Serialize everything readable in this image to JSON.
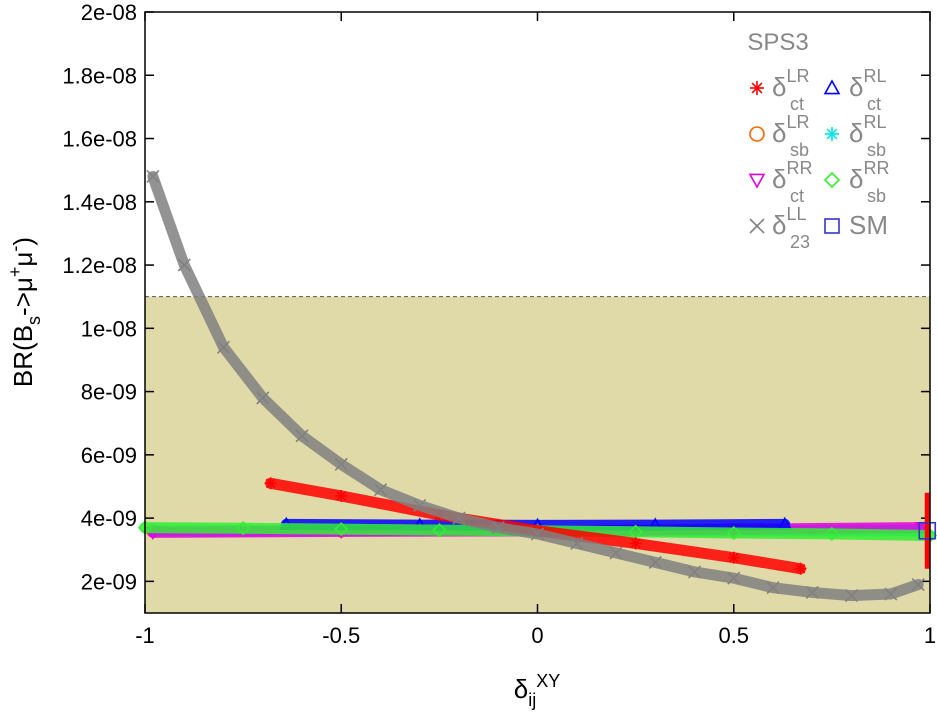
{
  "chart_data": {
    "type": "scatter",
    "xlabel": [
      {
        "text": "δ"
      },
      {
        "text": "ij",
        "sub": true
      },
      {
        "text": "XY",
        "sup": true
      }
    ],
    "ylabel": [
      {
        "text": "BR(B"
      },
      {
        "text": "s",
        "sub": true
      },
      {
        "text": "->μ"
      },
      {
        "text": "+",
        "sup": true
      },
      {
        "text": "μ"
      },
      {
        "text": "-",
        "sup": true
      },
      {
        "text": ")"
      }
    ],
    "xlim": [
      -1,
      1
    ],
    "xticks": [
      -1,
      -0.5,
      0,
      0.5,
      1
    ],
    "ylim": [
      1e-09,
      2e-08
    ],
    "yticks": [
      {
        "value": 2e-09,
        "label": "2e-09"
      },
      {
        "value": 4e-09,
        "label": "4e-09"
      },
      {
        "value": 6e-09,
        "label": "6e-09"
      },
      {
        "value": 8e-09,
        "label": "8e-09"
      },
      {
        "value": 1e-08,
        "label": "1e-08"
      },
      {
        "value": 1.2e-08,
        "label": "1.2e-08"
      },
      {
        "value": 1.4e-08,
        "label": "1.4e-08"
      },
      {
        "value": 1.6e-08,
        "label": "1.6e-08"
      },
      {
        "value": 1.8e-08,
        "label": "1.8e-08"
      },
      {
        "value": 2e-08,
        "label": "2e-08"
      }
    ],
    "allowed_band": {
      "upper": 1.1e-08,
      "color": "#e0daa9"
    },
    "legend_title": "SPS3",
    "legend_position": "upper right",
    "series": [
      {
        "name": "δ",
        "sub": "ct",
        "sup": "LR",
        "color": "#ff0000",
        "marker": "star",
        "x": [
          -0.68,
          -0.5,
          -0.25,
          0,
          0.25,
          0.5,
          0.67
        ],
        "values": [
          5.1e-09,
          4.7e-09,
          4.1e-09,
          3.6e-09,
          3.2e-09,
          2.75e-09,
          2.4e-09
        ]
      },
      {
        "name": "δ",
        "sub": "ct",
        "sup": "RL",
        "color": "#0000ff",
        "marker": "triangle",
        "x": [
          -0.64,
          -0.3,
          0,
          0.3,
          0.63
        ],
        "values": [
          3.8e-09,
          3.78e-09,
          3.77e-09,
          3.78e-09,
          3.8e-09
        ]
      },
      {
        "name": "δ",
        "sub": "sb",
        "sup": "LR",
        "color": "#ff6600",
        "marker": "circle",
        "x": [
          -0.98,
          -0.5,
          0,
          0.5,
          0.98
        ],
        "values": [
          3.6e-09,
          3.6e-09,
          3.6e-09,
          3.6e-09,
          3.6e-09
        ]
      },
      {
        "name": "δ",
        "sub": "sb",
        "sup": "RL",
        "color": "#00e5e5",
        "marker": "asterisk",
        "x": [
          -0.98,
          -0.5,
          0,
          0.5,
          0.98
        ],
        "values": [
          3.6e-09,
          3.6e-09,
          3.6e-09,
          3.6e-09,
          3.6e-09
        ]
      },
      {
        "name": "δ",
        "sub": "ct",
        "sup": "RR",
        "color": "#e000e0",
        "marker": "triangle-down",
        "x": [
          -0.98,
          -0.5,
          0,
          0.5,
          0.98
        ],
        "values": [
          3.55e-09,
          3.58e-09,
          3.6e-09,
          3.65e-09,
          3.7e-09
        ]
      },
      {
        "name": "δ",
        "sub": "sb",
        "sup": "RR",
        "color": "#33ee33",
        "marker": "diamond",
        "x": [
          -1,
          -0.75,
          -0.5,
          -0.25,
          0,
          0.25,
          0.5,
          0.75,
          1
        ],
        "values": [
          3.7e-09,
          3.68e-09,
          3.65e-09,
          3.62e-09,
          3.6e-09,
          3.57e-09,
          3.53e-09,
          3.5e-09,
          3.45e-09
        ]
      },
      {
        "name": "δ",
        "sub": "23",
        "sup": "LL",
        "color": "#808080",
        "marker": "cross",
        "x": [
          -0.98,
          -0.9,
          -0.8,
          -0.7,
          -0.6,
          -0.5,
          -0.4,
          -0.3,
          -0.2,
          -0.1,
          0,
          0.1,
          0.2,
          0.3,
          0.4,
          0.5,
          0.6,
          0.7,
          0.8,
          0.9,
          0.97
        ],
        "values": [
          1.48e-08,
          1.2e-08,
          9.4e-09,
          7.8e-09,
          6.6e-09,
          5.7e-09,
          4.9e-09,
          4.4e-09,
          4e-09,
          3.7e-09,
          3.5e-09,
          3.2e-09,
          2.9e-09,
          2.6e-09,
          2.3e-09,
          2.1e-09,
          1.8e-09,
          1.65e-09,
          1.55e-09,
          1.6e-09,
          1.9e-09
        ]
      },
      {
        "name": "SM",
        "color": "#3333cc",
        "marker": "square",
        "error_color": "#ff0000",
        "x": [
          0.993
        ],
        "values": [
          3.6e-09
        ],
        "error": [
          1.2e-09
        ]
      }
    ]
  }
}
